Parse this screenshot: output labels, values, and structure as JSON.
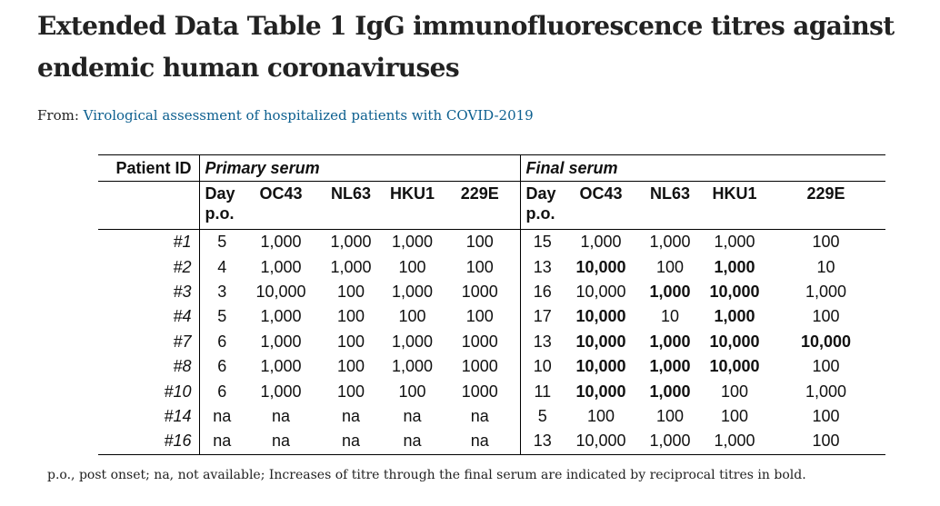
{
  "title": "Extended Data Table 1 IgG immunofluorescence titres against endemic human coronaviruses",
  "source": {
    "prefix": "From: ",
    "link_text": "Virological assessment of hospitalized patients with COVID-2019"
  },
  "table": {
    "patient_id_header": "Patient ID",
    "primary_group": "Primary serum",
    "final_group": "Final serum",
    "columns": [
      "Day p.o.",
      "OC43",
      "NL63",
      "HKU1",
      "229E"
    ],
    "rows": [
      {
        "id": "#1",
        "primary": [
          "5",
          "1,000",
          "1,000",
          "1,000",
          "100"
        ],
        "final": [
          "15",
          "1,000",
          "1,000",
          "1,000",
          "100"
        ],
        "final_bold": [
          false,
          false,
          false,
          false,
          false
        ]
      },
      {
        "id": "#2",
        "primary": [
          "4",
          "1,000",
          "1,000",
          "100",
          "100"
        ],
        "final": [
          "13",
          "10,000",
          "100",
          "1,000",
          "10"
        ],
        "final_bold": [
          false,
          true,
          false,
          true,
          false
        ]
      },
      {
        "id": "#3",
        "primary": [
          "3",
          "10,000",
          "100",
          "1,000",
          "1000"
        ],
        "final": [
          "16",
          "10,000",
          "1,000",
          "10,000",
          "1,000"
        ],
        "final_bold": [
          false,
          false,
          true,
          true,
          false
        ]
      },
      {
        "id": "#4",
        "primary": [
          "5",
          "1,000",
          "100",
          "100",
          "100"
        ],
        "final": [
          "17",
          "10,000",
          "10",
          "1,000",
          "100"
        ],
        "final_bold": [
          false,
          true,
          false,
          true,
          false
        ]
      },
      {
        "id": "#7",
        "primary": [
          "6",
          "1,000",
          "100",
          "1,000",
          "1000"
        ],
        "final": [
          "13",
          "10,000",
          "1,000",
          "10,000",
          "10,000"
        ],
        "final_bold": [
          false,
          true,
          true,
          true,
          true
        ]
      },
      {
        "id": "#8",
        "primary": [
          "6",
          "1,000",
          "100",
          "1,000",
          "1000"
        ],
        "final": [
          "10",
          "10,000",
          "1,000",
          "10,000",
          "100"
        ],
        "final_bold": [
          false,
          true,
          true,
          true,
          false
        ]
      },
      {
        "id": "#10",
        "primary": [
          "6",
          "1,000",
          "100",
          "100",
          "1000"
        ],
        "final": [
          "11",
          "10,000",
          "1,000",
          "100",
          "1,000"
        ],
        "final_bold": [
          false,
          true,
          true,
          false,
          false
        ]
      },
      {
        "id": "#14",
        "primary": [
          "na",
          "na",
          "na",
          "na",
          "na"
        ],
        "final": [
          "5",
          "100",
          "100",
          "100",
          "100"
        ],
        "final_bold": [
          false,
          false,
          false,
          false,
          false
        ]
      },
      {
        "id": "#16",
        "primary": [
          "na",
          "na",
          "na",
          "na",
          "na"
        ],
        "final": [
          "13",
          "10,000",
          "1,000",
          "1,000",
          "100"
        ],
        "final_bold": [
          false,
          false,
          false,
          false,
          false
        ]
      }
    ]
  },
  "footnote": "p.o., post onset; na, not available; Increases of titre through the final serum are indicated by reciprocal titres in bold."
}
